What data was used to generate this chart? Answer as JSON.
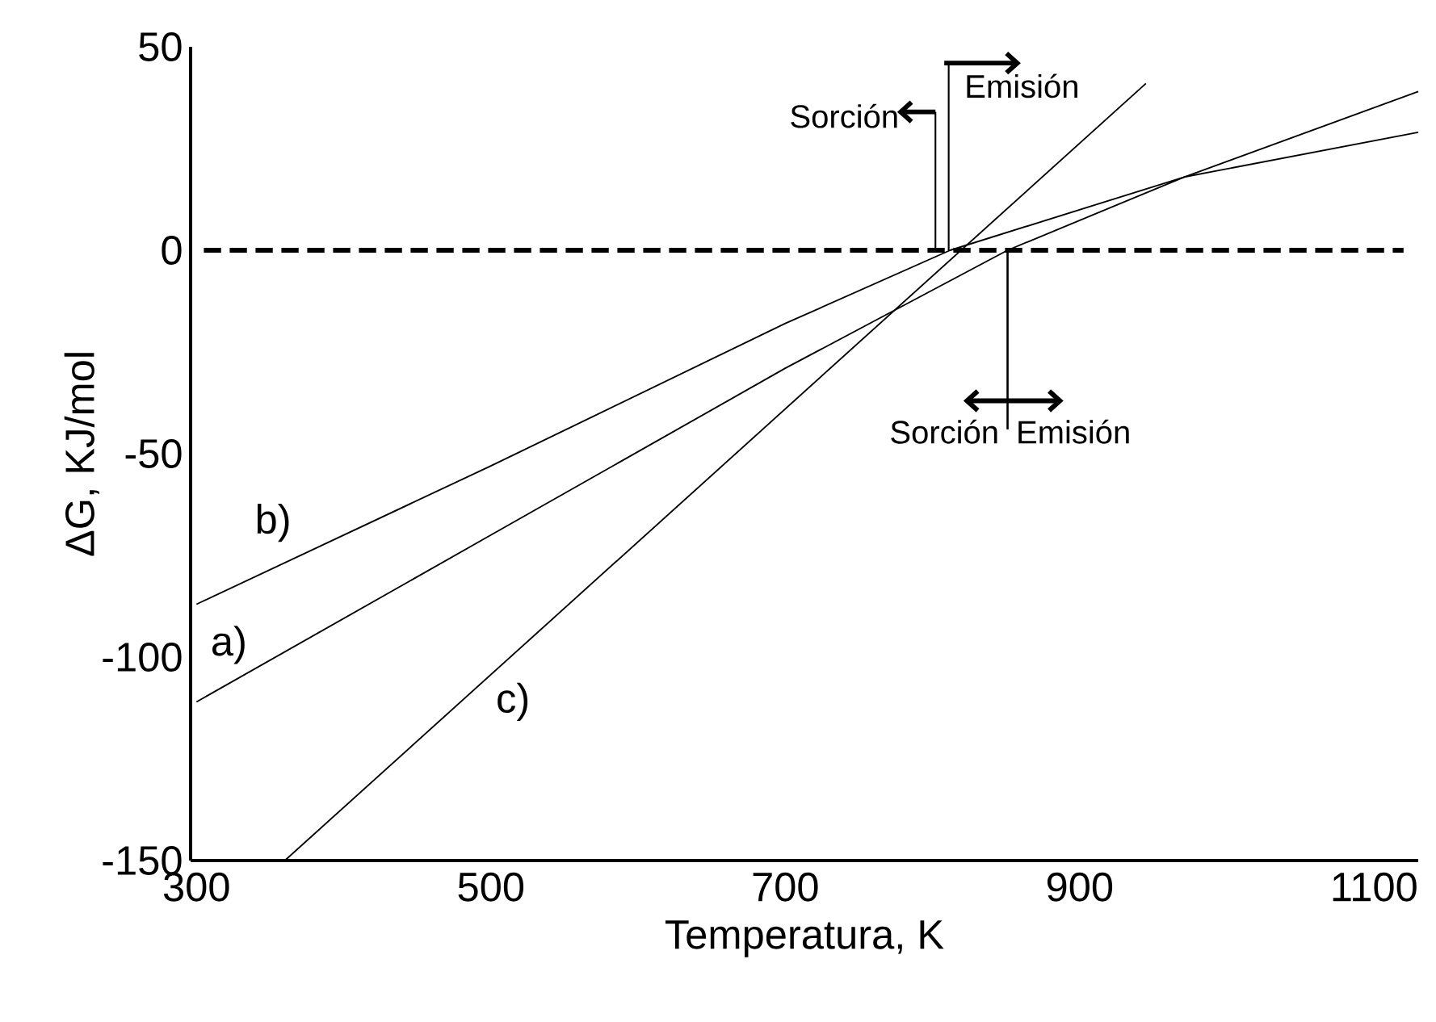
{
  "chart_data": {
    "type": "line",
    "xlabel": "Temperatura, K",
    "ylabel": "ΔG, KJ/mol",
    "xlim": [
      296,
      1130
    ],
    "ylim": [
      -150,
      50
    ],
    "xticks": [
      300,
      500,
      700,
      900,
      1100
    ],
    "yticks": [
      -150,
      -100,
      -50,
      0,
      50
    ],
    "grid": false,
    "legend": false,
    "marker": "none",
    "line_style": "solid",
    "series": [
      {
        "name": "a)",
        "color": "#000000",
        "x": [
          300,
          500,
          700,
          851,
          971,
          1130
        ],
        "values": [
          -111,
          -70,
          -29,
          0,
          18,
          39
        ]
      },
      {
        "name": "b)",
        "color": "#000000",
        "x": [
          300,
          500,
          700,
          812,
          971,
          1130
        ],
        "values": [
          -87,
          -53,
          -18,
          0,
          18,
          29
        ]
      },
      {
        "name": "c)",
        "color": "#000000",
        "x": [
          360,
          945
        ],
        "values": [
          -150,
          41
        ]
      }
    ],
    "ref_lines": [
      {
        "axis": "y",
        "value": 0,
        "color": "#000000",
        "line_style": "dashed"
      }
    ],
    "annotations": [
      {
        "text": "Sorción",
        "x": 802,
        "y": 0
      },
      {
        "text": "Emisión",
        "x": 811,
        "y": 0
      },
      {
        "text": "Sorción",
        "x": 851,
        "y": 0
      },
      {
        "text": "Emisión",
        "x": 851,
        "y": 0
      }
    ]
  }
}
